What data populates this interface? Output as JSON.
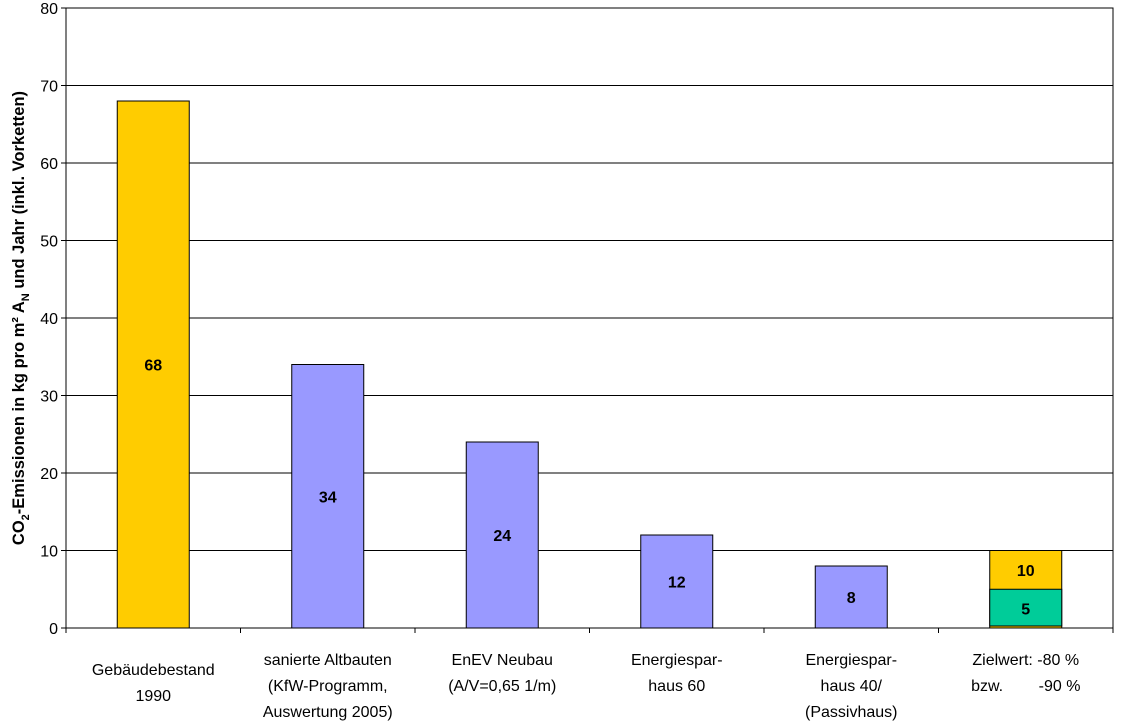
{
  "chart_data": {
    "type": "bar",
    "ylabel_main": "CO",
    "ylabel_sub": "2",
    "ylabel_mid": "-Emissionen in kg pro m² A",
    "ylabel_sub2": "N",
    "ylabel_end": " und Jahr (inkl. Vorketten)",
    "ylim": [
      0,
      80
    ],
    "yticks": [
      0,
      10,
      20,
      30,
      40,
      50,
      60,
      70,
      80
    ],
    "grid": true,
    "categories": [
      {
        "lines": [
          "Gebäudebestand",
          "1990"
        ]
      },
      {
        "lines": [
          "sanierte Altbauten",
          "(KfW-Programm,",
          "Auswertung 2005)"
        ]
      },
      {
        "lines": [
          "EnEV Neubau",
          "(A/V=0,65 1/m)"
        ]
      },
      {
        "lines": [
          "Energiespar-",
          "haus 60"
        ]
      },
      {
        "lines": [
          "Energiespar-",
          "haus 40/",
          "(Passivhaus)"
        ]
      },
      {
        "lines": [
          "Zielwert: -80 %",
          "bzw.        -90 %"
        ]
      }
    ],
    "bars": [
      {
        "value": 68,
        "label": "68",
        "color": "#FFCC00"
      },
      {
        "value": 34,
        "label": "34",
        "color": "#9999FF"
      },
      {
        "value": 24,
        "label": "24",
        "color": "#9999FF"
      },
      {
        "value": 12,
        "label": "12",
        "color": "#9999FF"
      },
      {
        "value": 8,
        "label": "8",
        "color": "#9999FF"
      },
      {
        "value": 10,
        "label": "10",
        "color": "#FFCC00"
      }
    ],
    "overlay_bar": {
      "category_index": 5,
      "value": 5,
      "label": "5",
      "color": "#00CC99"
    }
  }
}
